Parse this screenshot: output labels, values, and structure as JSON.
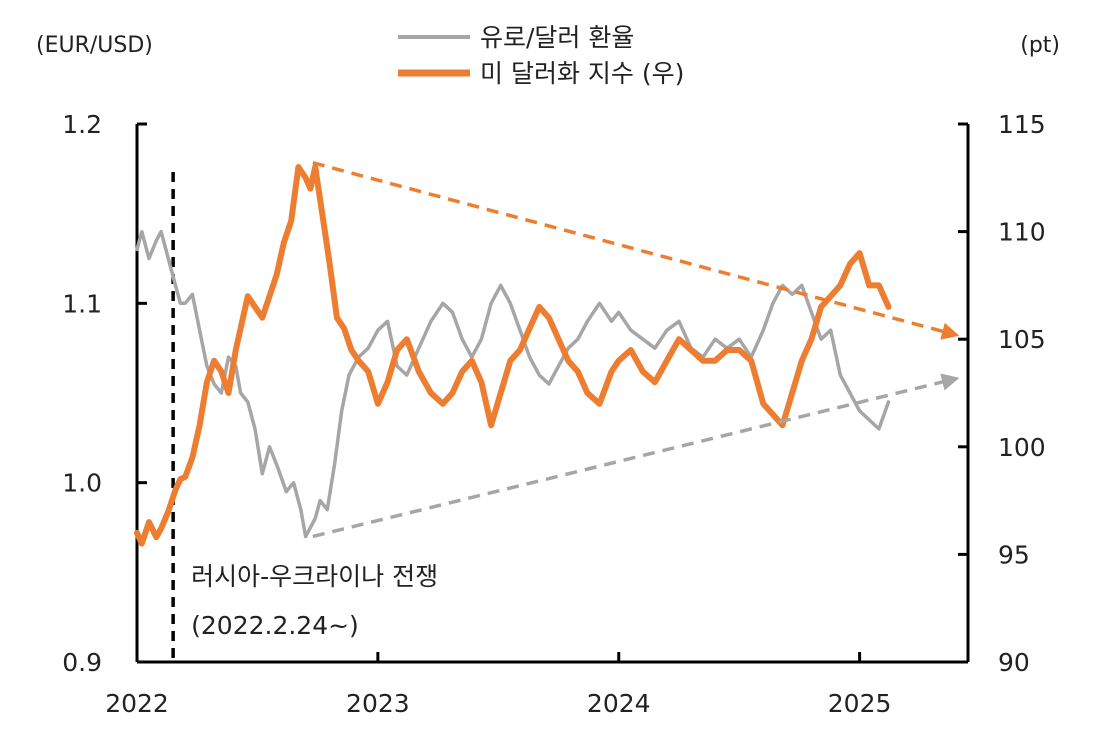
{
  "chart_data": {
    "type": "line",
    "title": "",
    "left_axis": {
      "unit_label": "(EUR/USD)",
      "range": [
        0.9,
        1.2
      ],
      "ticks": [
        "0.9",
        "1.0",
        "1.1",
        "1.2"
      ]
    },
    "right_axis": {
      "unit_label": "(pt)",
      "range": [
        90,
        115
      ],
      "ticks": [
        "90",
        "95",
        "100",
        "105",
        "110",
        "115"
      ]
    },
    "x_axis": {
      "range": [
        2022.0,
        2025.45
      ],
      "ticks": [
        "2022",
        "2023",
        "2024",
        "2025"
      ]
    },
    "legend_position": "top-center",
    "series": [
      {
        "name": "유로/달러 환율",
        "axis": "left",
        "color": "#a6a6a6",
        "x": [
          2022.0,
          2022.02,
          2022.05,
          2022.08,
          2022.1,
          2022.13,
          2022.16,
          2022.18,
          2022.2,
          2022.23,
          2022.26,
          2022.29,
          2022.32,
          2022.35,
          2022.38,
          2022.41,
          2022.43,
          2022.46,
          2022.49,
          2022.52,
          2022.55,
          2022.58,
          2022.62,
          2022.65,
          2022.68,
          2022.7,
          2022.72,
          2022.74,
          2022.76,
          2022.79,
          2022.82,
          2022.85,
          2022.88,
          2022.92,
          2022.96,
          2023.0,
          2023.04,
          2023.08,
          2023.12,
          2023.17,
          2023.22,
          2023.27,
          2023.31,
          2023.35,
          2023.39,
          2023.43,
          2023.47,
          2023.51,
          2023.55,
          2023.59,
          2023.63,
          2023.67,
          2023.71,
          2023.75,
          2023.79,
          2023.83,
          2023.87,
          2023.92,
          2023.97,
          2024.0,
          2024.05,
          2024.1,
          2024.15,
          2024.2,
          2024.25,
          2024.3,
          2024.35,
          2024.4,
          2024.45,
          2024.5,
          2024.55,
          2024.6,
          2024.64,
          2024.68,
          2024.72,
          2024.76,
          2024.8,
          2024.84,
          2024.88,
          2024.92,
          2024.96,
          2025.0,
          2025.04,
          2025.08,
          2025.12
        ],
        "values": [
          1.13,
          1.14,
          1.125,
          1.135,
          1.14,
          1.125,
          1.11,
          1.1,
          1.1,
          1.105,
          1.085,
          1.065,
          1.055,
          1.05,
          1.07,
          1.065,
          1.05,
          1.045,
          1.03,
          1.005,
          1.02,
          1.01,
          0.995,
          1.0,
          0.985,
          0.97,
          0.975,
          0.98,
          0.99,
          0.985,
          1.01,
          1.04,
          1.06,
          1.07,
          1.075,
          1.085,
          1.09,
          1.065,
          1.06,
          1.075,
          1.09,
          1.1,
          1.095,
          1.08,
          1.07,
          1.08,
          1.1,
          1.11,
          1.1,
          1.085,
          1.07,
          1.06,
          1.055,
          1.065,
          1.075,
          1.08,
          1.09,
          1.1,
          1.09,
          1.095,
          1.085,
          1.08,
          1.075,
          1.085,
          1.09,
          1.075,
          1.07,
          1.08,
          1.075,
          1.08,
          1.07,
          1.085,
          1.1,
          1.11,
          1.105,
          1.11,
          1.095,
          1.08,
          1.085,
          1.06,
          1.05,
          1.04,
          1.035,
          1.03,
          1.045
        ]
      },
      {
        "name": "미 달러화 지수 (우)",
        "axis": "right",
        "color": "#ed7d31",
        "x": [
          2022.0,
          2022.02,
          2022.05,
          2022.08,
          2022.1,
          2022.13,
          2022.16,
          2022.18,
          2022.2,
          2022.23,
          2022.26,
          2022.29,
          2022.32,
          2022.35,
          2022.38,
          2022.41,
          2022.43,
          2022.46,
          2022.49,
          2022.52,
          2022.55,
          2022.58,
          2022.61,
          2022.64,
          2022.67,
          2022.7,
          2022.72,
          2022.74,
          2022.76,
          2022.78,
          2022.8,
          2022.83,
          2022.86,
          2022.89,
          2022.92,
          2022.96,
          2023.0,
          2023.04,
          2023.08,
          2023.12,
          2023.17,
          2023.22,
          2023.27,
          2023.31,
          2023.35,
          2023.39,
          2023.43,
          2023.47,
          2023.51,
          2023.55,
          2023.59,
          2023.63,
          2023.67,
          2023.71,
          2023.75,
          2023.79,
          2023.83,
          2023.87,
          2023.92,
          2023.97,
          2024.0,
          2024.05,
          2024.1,
          2024.15,
          2024.2,
          2024.25,
          2024.3,
          2024.35,
          2024.4,
          2024.45,
          2024.5,
          2024.55,
          2024.6,
          2024.64,
          2024.68,
          2024.72,
          2024.76,
          2024.8,
          2024.84,
          2024.88,
          2024.92,
          2024.96,
          2025.0,
          2025.04,
          2025.08,
          2025.12
        ],
        "values": [
          96,
          95.5,
          96.5,
          95.8,
          96.2,
          97,
          98,
          98.5,
          98.6,
          99.5,
          101,
          103,
          104,
          103.5,
          102.5,
          104.5,
          105.5,
          107,
          106.5,
          106,
          107,
          108,
          109.5,
          110.5,
          113,
          112.5,
          112,
          113,
          111.5,
          110,
          108.5,
          106,
          105.5,
          104.5,
          104,
          103.5,
          102,
          103,
          104.5,
          105,
          103.5,
          102.5,
          102,
          102.5,
          103.5,
          104,
          103,
          101,
          102.5,
          104,
          104.5,
          105.5,
          106.5,
          106,
          105,
          104,
          103.5,
          102.5,
          102,
          103.5,
          104,
          104.5,
          103.5,
          103,
          104,
          105,
          104.5,
          104,
          104,
          104.5,
          104.5,
          104,
          102,
          101.5,
          101,
          102.5,
          104,
          105,
          106.5,
          107,
          107.5,
          108.5,
          109,
          107.5,
          107.5,
          106.5
        ]
      }
    ],
    "trend_arrows": [
      {
        "series": "미 달러화 지수 (우)",
        "axis": "right",
        "from": [
          2022.73,
          113.2
        ],
        "to": [
          2025.45,
          105.2
        ]
      },
      {
        "series": "유로/달러 환율",
        "axis": "left",
        "from": [
          2022.73,
          0.97
        ],
        "to": [
          2025.45,
          1.058
        ]
      }
    ],
    "event_line": {
      "x": 2022.15,
      "label_line1": "러시아-우크라이나 전쟁",
      "label_line2": "(2022.2.24~)"
    }
  }
}
